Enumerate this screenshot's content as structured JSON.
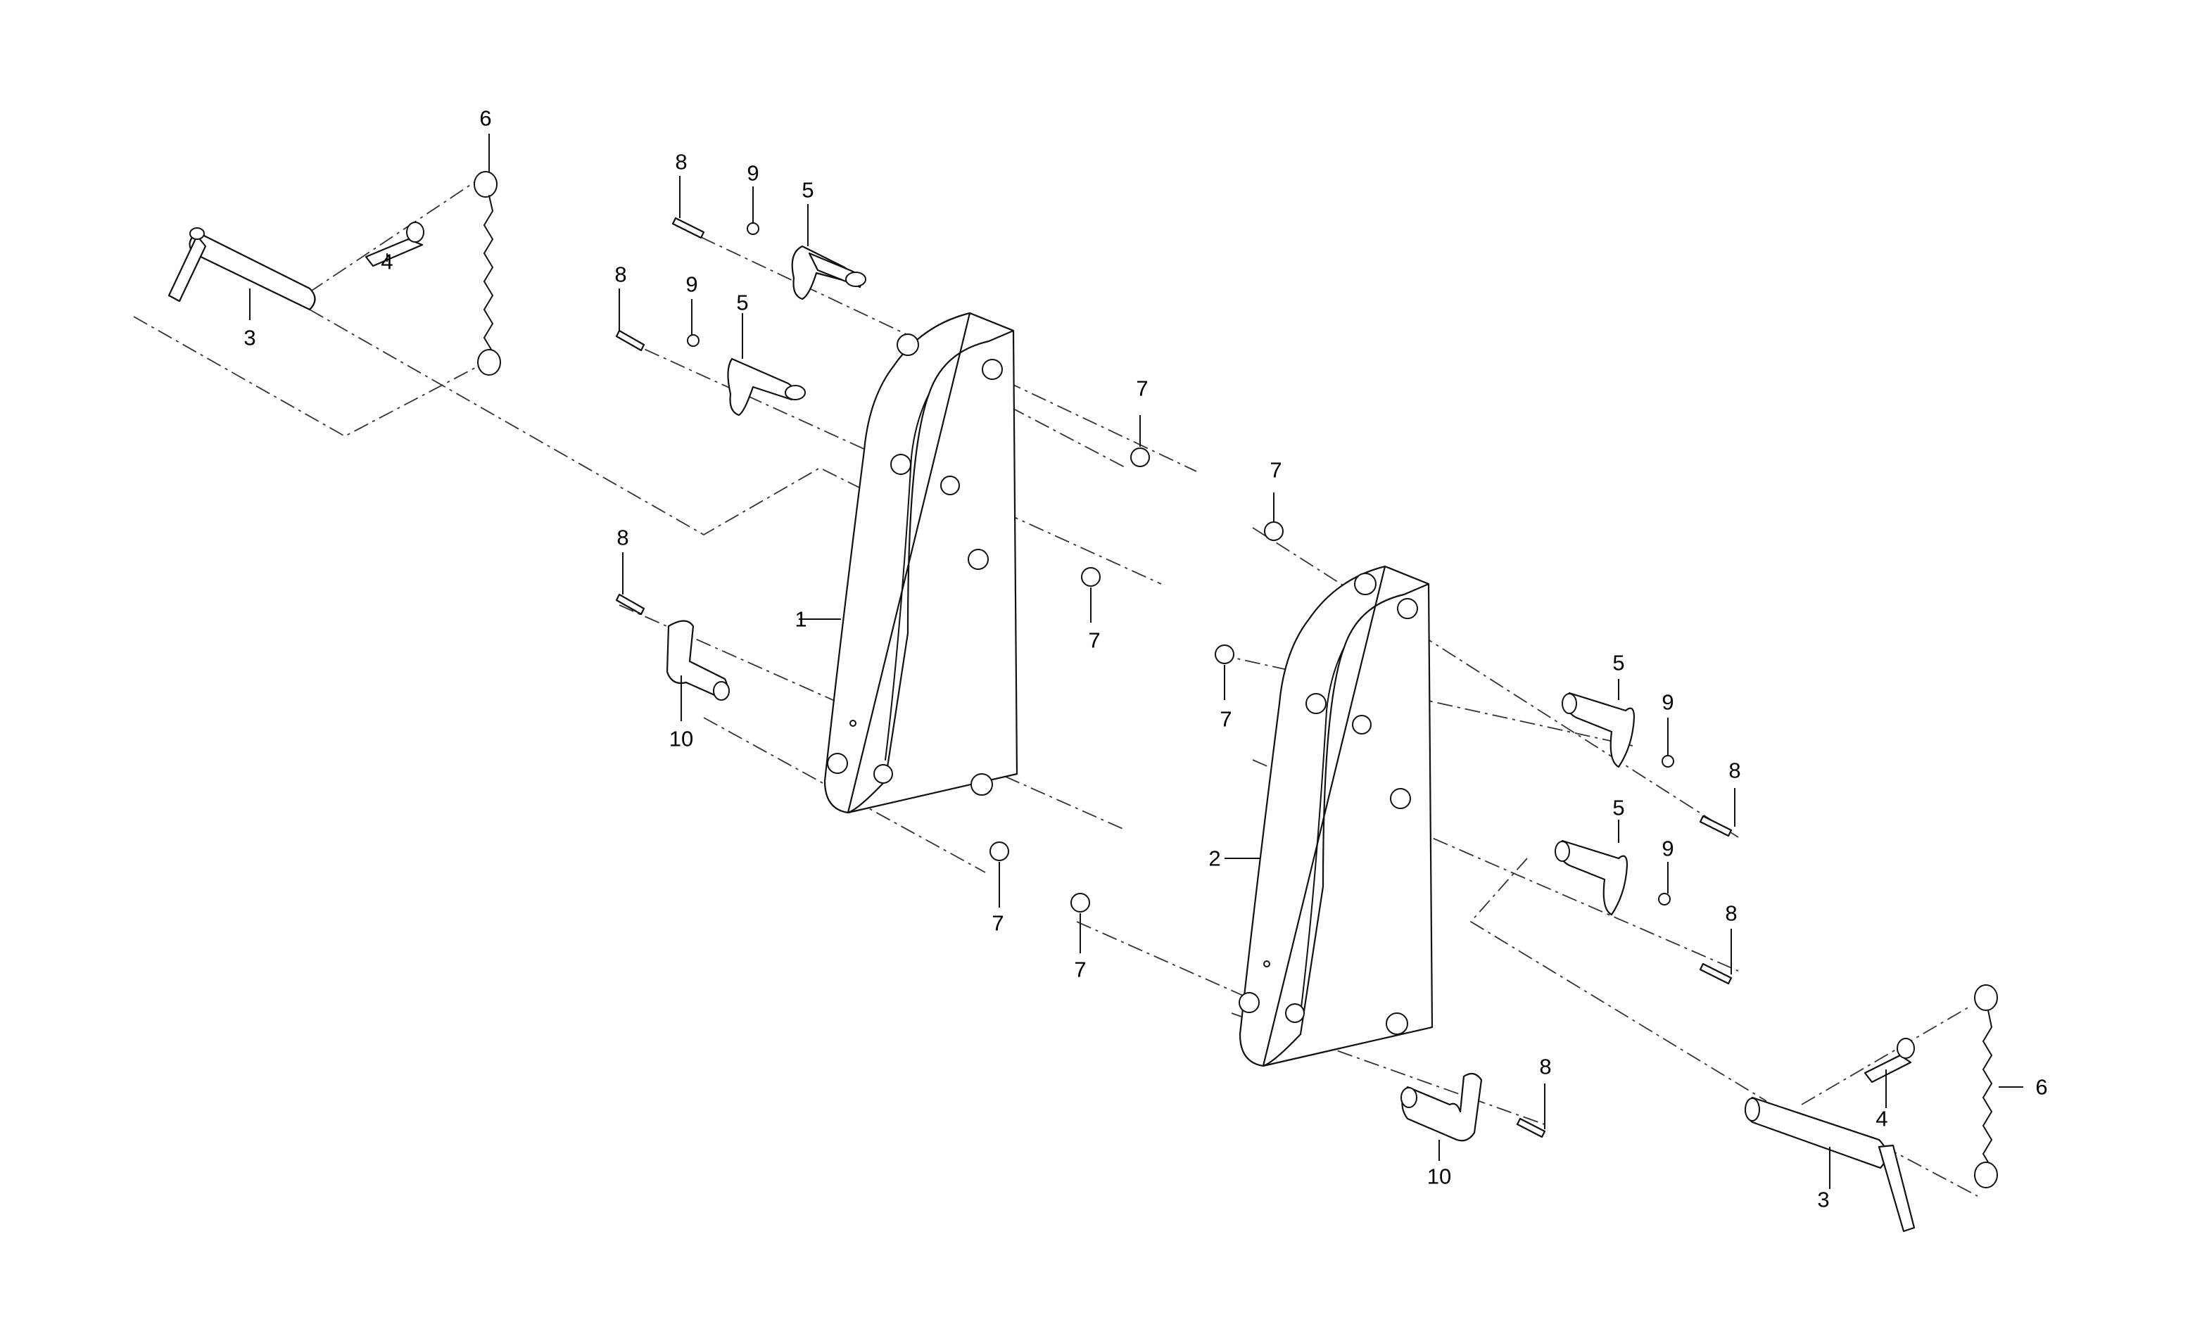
{
  "callouts": {
    "frame_left": "1",
    "frame_right": "2",
    "lock_pin": "3",
    "clip": "4",
    "pivot_pin": "5",
    "chain": "6",
    "retaining_ring": "7",
    "screw": "8",
    "nut": "9",
    "lower_pin": "10"
  }
}
